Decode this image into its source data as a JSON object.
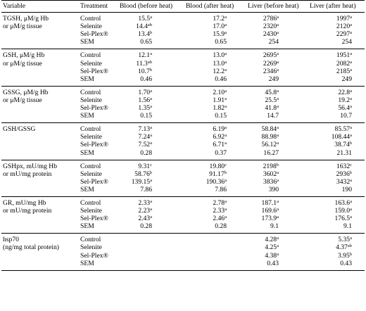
{
  "headers": [
    "Variable",
    "Treatment",
    "Blood (before heat)",
    "Blood (after heat)",
    "Liver (before heat)",
    "Liver  (after heat)"
  ],
  "groups": [
    {
      "variable": [
        "TGSH, μM/g Hb",
        "or μM/g tissue"
      ],
      "rows": [
        {
          "treatment": "Control",
          "values": [
            [
              "15.5",
              "a"
            ],
            [
              "17.2",
              "a"
            ],
            [
              "2786",
              "a"
            ],
            [
              "1997",
              "a"
            ]
          ]
        },
        {
          "treatment": "Selenite",
          "values": [
            [
              "14.4",
              "ab"
            ],
            [
              "17.0",
              "a"
            ],
            [
              "2320",
              "a"
            ],
            [
              "2120",
              "a"
            ]
          ]
        },
        {
          "treatment": "Sel-Plex®",
          "values": [
            [
              "13.4",
              "b"
            ],
            [
              "15.9",
              "a"
            ],
            [
              "2430",
              "a"
            ],
            [
              "2297",
              "a"
            ]
          ]
        },
        {
          "treatment": "SEM",
          "values": [
            [
              "0.65",
              ""
            ],
            [
              "0.65",
              ""
            ],
            [
              "254",
              ""
            ],
            [
              "254",
              ""
            ]
          ]
        }
      ]
    },
    {
      "variable": [
        "GSH, μM/g Hb",
        "or μM/g tissue"
      ],
      "rows": [
        {
          "treatment": "Control",
          "values": [
            [
              "12.1",
              "a"
            ],
            [
              "13.0",
              "a"
            ],
            [
              "2695",
              "a"
            ],
            [
              "1951",
              "a"
            ]
          ]
        },
        {
          "treatment": "Selenite",
          "values": [
            [
              "11.3",
              "ab"
            ],
            [
              "13.0",
              "a"
            ],
            [
              "2269",
              "a"
            ],
            [
              "2082",
              "a"
            ]
          ]
        },
        {
          "treatment": "Sel-Plex®",
          "values": [
            [
              "10.7",
              "b"
            ],
            [
              "12.2",
              "a"
            ],
            [
              "2346",
              "a"
            ],
            [
              "2185",
              "a"
            ]
          ]
        },
        {
          "treatment": "SEM",
          "values": [
            [
              "0.46",
              ""
            ],
            [
              "0.46",
              ""
            ],
            [
              "249",
              ""
            ],
            [
              "249",
              ""
            ]
          ]
        }
      ]
    },
    {
      "variable": [
        "GSSG, μM/g Hb",
        "or μM/g tissue"
      ],
      "rows": [
        {
          "treatment": "Control",
          "values": [
            [
              "1.70",
              "a"
            ],
            [
              "2.10",
              "a"
            ],
            [
              "45.8",
              "a"
            ],
            [
              "22.8",
              "a"
            ]
          ]
        },
        {
          "treatment": "Selenite",
          "values": [
            [
              "1.56",
              "a"
            ],
            [
              "1.91",
              "a"
            ],
            [
              "25.5",
              "a"
            ],
            [
              "19.2",
              "a"
            ]
          ]
        },
        {
          "treatment": "Sel-Plex®",
          "values": [
            [
              "1.35",
              "a"
            ],
            [
              "1.82",
              "a"
            ],
            [
              "41.8",
              "a"
            ],
            [
              "56.4",
              "a"
            ]
          ]
        },
        {
          "treatment": "SEM",
          "values": [
            [
              "0.15",
              ""
            ],
            [
              "0.15",
              ""
            ],
            [
              "14.7",
              ""
            ],
            [
              "10.7",
              ""
            ]
          ]
        }
      ]
    },
    {
      "variable": [
        "GSH/GSSG"
      ],
      "rows": [
        {
          "treatment": "Control",
          "values": [
            [
              "7.13",
              "a"
            ],
            [
              "6.19",
              "a"
            ],
            [
              "58.84",
              "a"
            ],
            [
              "85.57",
              "a"
            ]
          ]
        },
        {
          "treatment": "Selenite",
          "values": [
            [
              "7.24",
              "a"
            ],
            [
              "6.92",
              "a"
            ],
            [
              "88.98",
              "a"
            ],
            [
              "108.44",
              "a"
            ]
          ]
        },
        {
          "treatment": "Sel-Plex®",
          "values": [
            [
              "7.52",
              "a"
            ],
            [
              "6.71",
              "a"
            ],
            [
              "56.12",
              "a"
            ],
            [
              "38.74",
              "b"
            ]
          ]
        },
        {
          "treatment": "SEM",
          "values": [
            [
              "0.28",
              ""
            ],
            [
              "0.37",
              ""
            ],
            [
              "16.27",
              ""
            ],
            [
              "21.31",
              ""
            ]
          ]
        }
      ]
    },
    {
      "variable": [
        "GSHpx, mU/mg Hb",
        "or mU/mg protein"
      ],
      "rows": [
        {
          "treatment": "Control",
          "values": [
            [
              "9.31",
              "c"
            ],
            [
              "19.80",
              "c"
            ],
            [
              "2198",
              "b"
            ],
            [
              "1632",
              "c"
            ]
          ]
        },
        {
          "treatment": "Selenite",
          "values": [
            [
              "58.76",
              "b"
            ],
            [
              "91.17",
              "b"
            ],
            [
              "3602",
              "a"
            ],
            [
              "2936",
              "b"
            ]
          ]
        },
        {
          "treatment": "Sel-Plex®",
          "values": [
            [
              "139.15",
              "a"
            ],
            [
              "190.36",
              "a"
            ],
            [
              "3836",
              "a"
            ],
            [
              "3432",
              "a"
            ]
          ]
        },
        {
          "treatment": "SEM",
          "values": [
            [
              "7.86",
              ""
            ],
            [
              "7.86",
              ""
            ],
            [
              "390",
              ""
            ],
            [
              "190",
              ""
            ]
          ]
        }
      ]
    },
    {
      "variable": [
        "GR, mU/mg Hb",
        "or mU/mg protein"
      ],
      "rows": [
        {
          "treatment": "Control",
          "values": [
            [
              "2.33",
              "a"
            ],
            [
              "2.78",
              "a"
            ],
            [
              "187.1",
              "a"
            ],
            [
              "163.6",
              "a"
            ]
          ]
        },
        {
          "treatment": "Selenite",
          "values": [
            [
              "2.23",
              "a"
            ],
            [
              "2.33",
              "a"
            ],
            [
              "169.6",
              "a"
            ],
            [
              "159.0",
              "a"
            ]
          ]
        },
        {
          "treatment": "Sel-Plex®",
          "values": [
            [
              "2.43",
              "a"
            ],
            [
              "2.46",
              "a"
            ],
            [
              "173.9",
              "a"
            ],
            [
              "176.5",
              "a"
            ]
          ]
        },
        {
          "treatment": "SEM",
          "values": [
            [
              "0.28",
              ""
            ],
            [
              "0.28",
              ""
            ],
            [
              "9.1",
              ""
            ],
            [
              "9.1",
              ""
            ]
          ]
        }
      ]
    },
    {
      "variable": [
        "hsp70",
        "(ng/mg total protein)"
      ],
      "rows": [
        {
          "treatment": "Control",
          "values": [
            [
              "",
              ""
            ],
            [
              "",
              ""
            ],
            [
              "4.28",
              "a"
            ],
            [
              "5.35",
              "a"
            ]
          ]
        },
        {
          "treatment": "Selenite",
          "values": [
            [
              "",
              ""
            ],
            [
              "",
              ""
            ],
            [
              "4.25",
              "a"
            ],
            [
              "4.37",
              "ab"
            ]
          ]
        },
        {
          "treatment": "Sel-Plex®",
          "values": [
            [
              "",
              ""
            ],
            [
              "",
              ""
            ],
            [
              "4.38",
              "a"
            ],
            [
              "3.95",
              "b"
            ]
          ]
        },
        {
          "treatment": "SEM",
          "values": [
            [
              "",
              ""
            ],
            [
              "",
              ""
            ],
            [
              "0.43",
              ""
            ],
            [
              "0.43",
              ""
            ]
          ]
        }
      ]
    }
  ]
}
